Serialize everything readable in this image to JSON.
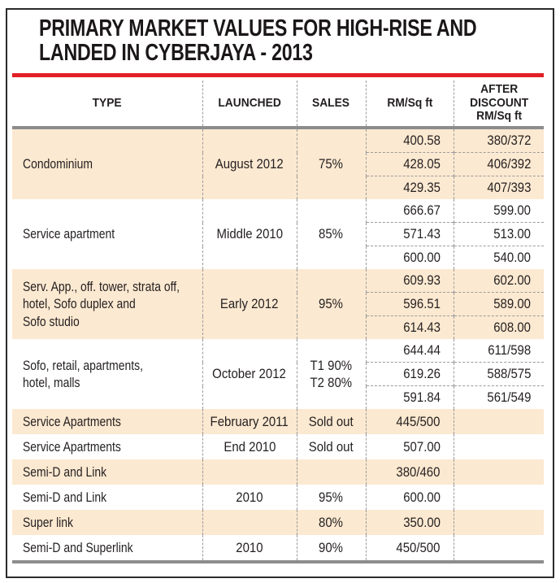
{
  "title": {
    "line1": "PRIMARY MARKET VALUES FOR HIGH-RISE AND",
    "line2": "LANDED IN CYBERJAYA - 2013"
  },
  "colors": {
    "accent_red": "#e21f26",
    "row_shade": "#fce9d1",
    "rule_gray": "#8d8d8d",
    "dash_gray": "#9b9b9b",
    "text_ink": "#231f20",
    "frame_border": "#2b2b2b"
  },
  "table": {
    "headers": [
      {
        "id": "type",
        "label": "TYPE"
      },
      {
        "id": "launched",
        "label": "LAUNCHED"
      },
      {
        "id": "sales",
        "label": "SALES"
      },
      {
        "id": "rm",
        "label": "RM/Sq ft"
      },
      {
        "id": "disc",
        "label": "AFTER\nDISCOUNT\nRM/Sq ft"
      }
    ],
    "rows": [
      {
        "type": "Condominium",
        "launched": "August 2012",
        "sales": "75%",
        "rm": [
          "400.58",
          "428.05",
          "429.35"
        ],
        "discount": [
          "380/372",
          "406/392",
          "407/393"
        ],
        "shaded": true
      },
      {
        "type": "Service apartment",
        "launched": "Middle 2010",
        "sales": "85%",
        "rm": [
          "666.67",
          "571.43",
          "600.00"
        ],
        "discount": [
          "599.00",
          "513.00",
          "540.00"
        ],
        "shaded": false
      },
      {
        "type": "Serv. App., off. tower, strata off,\nhotel, Sofo duplex and\nSofo studio",
        "launched": "Early 2012",
        "sales": "95%",
        "rm": [
          "609.93",
          "596.51",
          "614.43"
        ],
        "discount": [
          "602.00",
          "589.00",
          "608.00"
        ],
        "shaded": true
      },
      {
        "type": "Sofo, retail, apartments,\nhotel, malls",
        "launched": "October 2012",
        "sales": "T1 90%\nT2 80%",
        "rm": [
          "644.44",
          "619.26",
          "591.84"
        ],
        "discount": [
          "611/598",
          "588/575",
          "561/549"
        ],
        "shaded": false
      },
      {
        "type": "Service Apartments",
        "launched": "February 2011",
        "sales": "Sold out",
        "rm": [
          "445/500"
        ],
        "discount": [
          ""
        ],
        "shaded": true
      },
      {
        "type": "Service Apartments",
        "launched": "End 2010",
        "sales": "Sold out",
        "rm": [
          "507.00"
        ],
        "discount": [
          ""
        ],
        "shaded": false
      },
      {
        "type": "Semi-D and Link",
        "launched": "",
        "sales": "",
        "rm": [
          "380/460"
        ],
        "discount": [
          ""
        ],
        "shaded": true
      },
      {
        "type": "Semi-D and Link",
        "launched": "2010",
        "sales": "95%",
        "rm": [
          "600.00"
        ],
        "discount": [
          ""
        ],
        "shaded": false
      },
      {
        "type": "Super link",
        "launched": "",
        "sales": "80%",
        "rm": [
          "350.00"
        ],
        "discount": [
          ""
        ],
        "shaded": true
      },
      {
        "type": "Semi-D and Superlink",
        "launched": "2010",
        "sales": "90%",
        "rm": [
          "450/500"
        ],
        "discount": [
          ""
        ],
        "shaded": false
      }
    ]
  }
}
